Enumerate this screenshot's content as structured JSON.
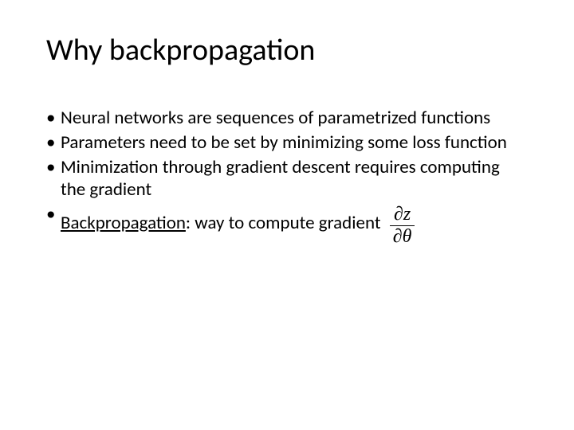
{
  "title": "Why backpropagation",
  "bullets": [
    "Neural networks are sequences of parametrized functions",
    "Parameters need to be set by minimizing some loss function",
    "Minimization through gradient descent requires computing the gradient"
  ],
  "bullet4_prefix": "Backpropagation",
  "bullet4_rest": ": way to compute gradient",
  "formula": {
    "partial": "∂",
    "num_var": "z",
    "den_var": "θ"
  },
  "style": {
    "bg": "#ffffff",
    "text_color": "#000000",
    "title_fontsize": 38,
    "body_fontsize": 23,
    "formula_fontsize": 24
  }
}
